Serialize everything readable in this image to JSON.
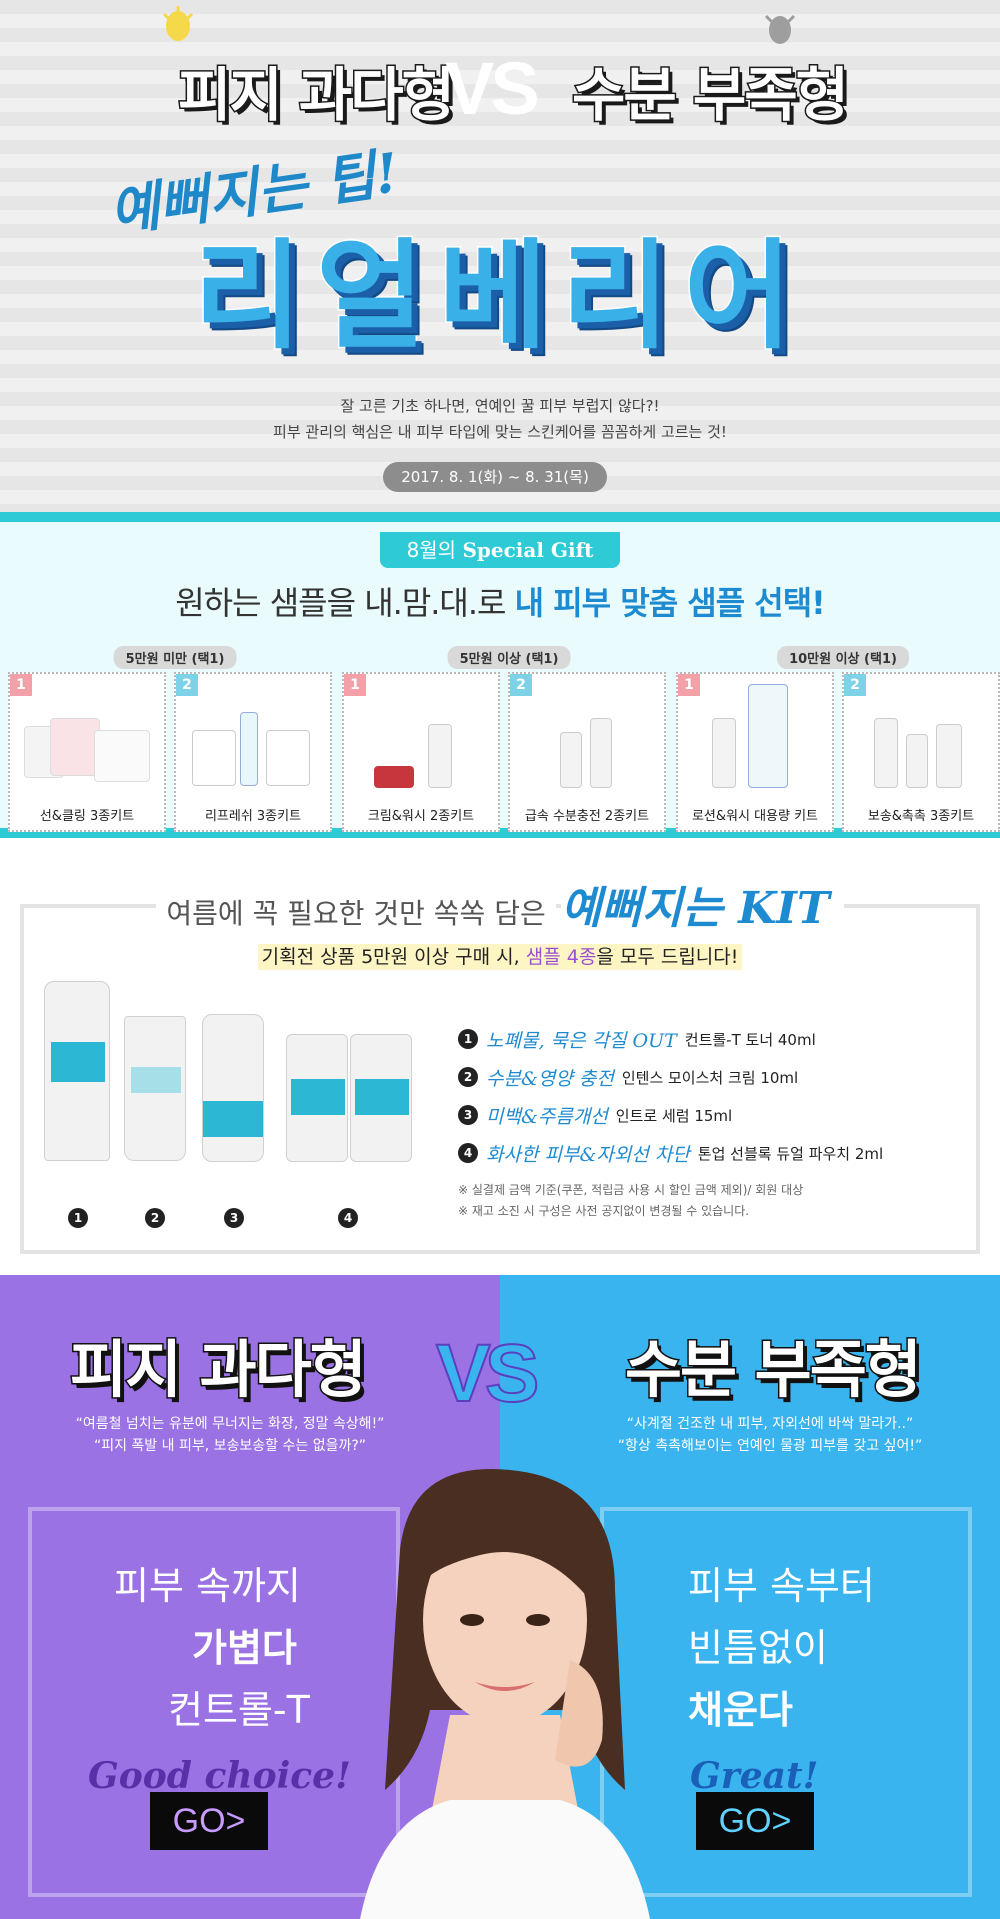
{
  "hero": {
    "left_title": "피지 과다형",
    "vs": "VS",
    "right_title": "수분 부족형",
    "script_title": "예뻐지는 팁!",
    "brand_title": "리얼베리어",
    "desc_line1": "잘 고른 기초 하나면, 연예인 꿀 피부 부럽지 않다?!",
    "desc_line2": "피부 관리의 핵심은 내 피부 타입에 맞는 스킨케어를 꼼꼼하게 고르는 것!",
    "date": "2017. 8. 1(화) ~ 8. 31(목)"
  },
  "gift": {
    "badge_prefix": "8월의",
    "badge_main": "Special Gift",
    "title_plain": "원하는 샘플을 내.맘.대.로",
    "title_accent": "내 피부 맞춤 샘플 선택!",
    "tiers": [
      {
        "label": "5만원 미만 (택1)",
        "kits": [
          {
            "num": "1",
            "name": "선&클링 3종키트"
          },
          {
            "num": "2",
            "name": "리프레쉬 3종키트"
          }
        ]
      },
      {
        "label": "5만원 이상 (택1)",
        "kits": [
          {
            "num": "1",
            "name": "크림&워시 2종키트"
          },
          {
            "num": "2",
            "name": "급속 수분충전 2종키트"
          }
        ]
      },
      {
        "label": "10만원 이상 (택1)",
        "kits": [
          {
            "num": "1",
            "name": "로션&워시 대용량 키트"
          },
          {
            "num": "2",
            "name": "보송&촉촉 3종키트"
          }
        ]
      }
    ]
  },
  "kit": {
    "head_plain": "여름에 꼭 필요한 것만 쏙쏙 담은",
    "head_script": "예뻐지는 KIT",
    "sub_pre": "기획전 상품 5만원 이상 구매 시,",
    "sub_accent": "샘플 4종",
    "sub_post": "을 모두 드립니다!",
    "product_nums": [
      "1",
      "2",
      "3",
      "4"
    ],
    "items": [
      {
        "num": "1",
        "benefit": "노폐물, 묵은 각질 OUT",
        "product": "컨트롤-T 토너 40ml"
      },
      {
        "num": "2",
        "benefit": "수분&영양 충전",
        "product": "인텐스 모이스처 크림 10ml"
      },
      {
        "num": "3",
        "benefit": "미백&주름개선",
        "product": "인트로 세럼 15ml"
      },
      {
        "num": "4",
        "benefit": "화사한 피부&자외선 차단",
        "product": "톤업 선블록 듀얼 파우치 2ml"
      }
    ],
    "note1": "※ 실결제 금액 기준(쿠폰, 적립금 사용 시 할인 금액 제외)/ 회원 대상",
    "note2": "※ 재고 소진 시 구성은 사전 공지없이 변경될 수 있습니다."
  },
  "vs_section": {
    "left": {
      "title": "피지 과다형",
      "quote1": "“여름철 넘치는 유분에 무너지는 화장, 정말 속상해!”",
      "quote2": "“피지 폭발 내 피부, 보송보송할 수는 없을까?”",
      "copy1": "피부 속까지",
      "copy2": "가볍다",
      "copy3": "컨트롤-T",
      "choice": "Good choice!",
      "go": "GO>"
    },
    "vs": "VS",
    "right": {
      "title": "수분 부족형",
      "quote1": "“사계절 건조한 내 피부, 자외선에 바싹 말라가..”",
      "quote2": "“항상 촉촉해보이는 연예인 물광 피부를 갖고 싶어!”",
      "copy1": "피부 속부터",
      "copy2": "빈틈없이",
      "copy3": "채운다",
      "choice": "Great!",
      "go": "GO>"
    }
  },
  "colors": {
    "accent_blue": "#1e8bd0",
    "teal": "#2ecbd7",
    "purple": "#9a72e4",
    "sky": "#3ab4ee"
  }
}
